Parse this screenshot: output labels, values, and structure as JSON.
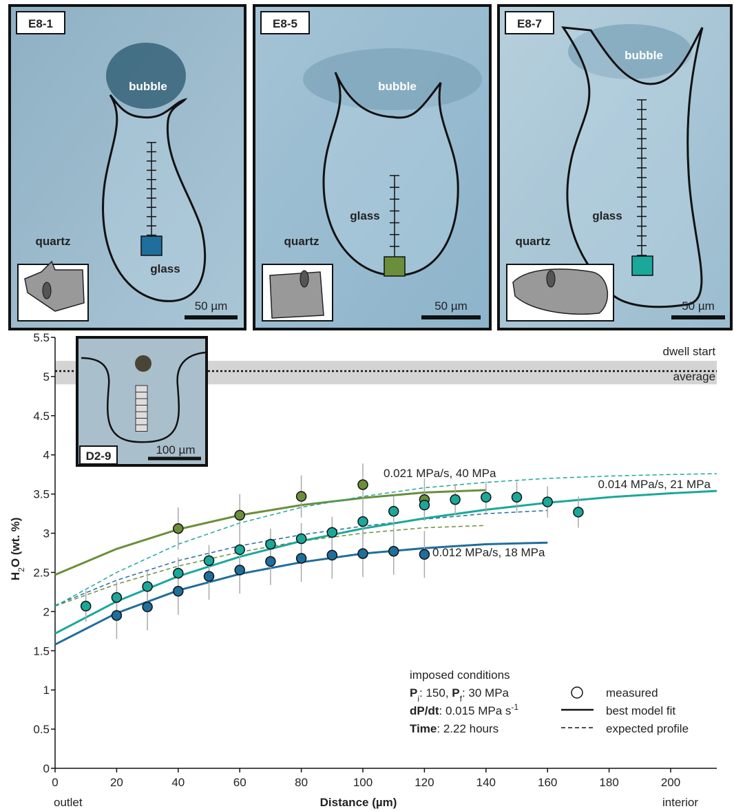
{
  "panels": [
    {
      "id": "E8-1",
      "bubble": "bubble",
      "glass": "glass",
      "quartz": "quartz",
      "scale_bar": "50 µm"
    },
    {
      "id": "E8-5",
      "bubble": "bubble",
      "glass": "glass",
      "quartz": "quartz",
      "scale_bar": "50 µm"
    },
    {
      "id": "E8-7",
      "bubble": "bubble",
      "glass": "glass",
      "quartz": "quartz",
      "scale_bar": "50 µm"
    }
  ],
  "chart_data": {
    "type": "scatter",
    "inset": {
      "id": "D2-9",
      "scale_bar": "100 µm"
    },
    "xlabel": "Distance (µm)",
    "ylabel_parts": [
      {
        "text": "H",
        "style": "bold"
      },
      {
        "text": "2",
        "style": "sub"
      },
      {
        "text": "O (wt. %)",
        "style": "bold"
      }
    ],
    "x_end_labels": [
      "outlet",
      "interior"
    ],
    "xlim": [
      0,
      215
    ],
    "xticks": [
      0,
      20,
      40,
      60,
      80,
      100,
      120,
      140,
      160,
      180,
      200
    ],
    "ylim": [
      0,
      5.5
    ],
    "yticks": [
      0,
      0.5,
      1,
      1.5,
      2,
      2.5,
      3,
      3.5,
      4,
      4.5,
      5,
      5.5
    ],
    "dwell_start": {
      "label": "dwell start",
      "average_label": "average",
      "band": [
        4.9,
        5.2
      ],
      "average": 5.07
    },
    "series": [
      {
        "color": "#1f6e9c",
        "x": [
          20,
          30,
          40,
          50,
          60,
          70,
          80,
          90,
          100,
          110,
          120
        ],
        "values": [
          1.95,
          2.06,
          2.26,
          2.45,
          2.53,
          2.64,
          2.68,
          2.72,
          2.74,
          2.77,
          2.73
        ],
        "errors": [
          0.3,
          0.3,
          0.3,
          0.3,
          0.3,
          0.3,
          0.3,
          0.3,
          0.3,
          0.3,
          0.3
        ],
        "fit": {
          "x": [
            0,
            20,
            40,
            60,
            80,
            100,
            120,
            140,
            160
          ],
          "values": [
            1.58,
            1.98,
            2.27,
            2.48,
            2.63,
            2.74,
            2.81,
            2.86,
            2.88
          ]
        },
        "expected": {
          "x": [
            0,
            20,
            40,
            60,
            80,
            100,
            120,
            140,
            160
          ],
          "values": [
            2.08,
            2.4,
            2.65,
            2.84,
            2.98,
            3.09,
            3.18,
            3.25,
            3.29
          ]
        },
        "fit_label": "0.012 MPa/s, 18 MPa"
      },
      {
        "color": "#6b8e3a",
        "x": [
          40,
          60,
          80,
          100,
          120
        ],
        "values": [
          3.06,
          3.23,
          3.47,
          3.62,
          3.43
        ],
        "errors": [
          0.27,
          0.27,
          0.27,
          0.27,
          0.27
        ],
        "fit": {
          "x": [
            0,
            20,
            40,
            60,
            80,
            100,
            120,
            140
          ],
          "values": [
            2.47,
            2.8,
            3.05,
            3.23,
            3.36,
            3.45,
            3.52,
            3.55
          ]
        },
        "expected": {
          "x": [
            0,
            20,
            40,
            60,
            80,
            100,
            120,
            140
          ],
          "values": [
            2.07,
            2.35,
            2.58,
            2.76,
            2.9,
            3.0,
            3.07,
            3.1
          ]
        },
        "fit_label": "0.021 MPa/s, 40 MPa"
      },
      {
        "color": "#1aa89a",
        "x": [
          10,
          20,
          30,
          40,
          50,
          60,
          70,
          80,
          90,
          100,
          110,
          120,
          130,
          140,
          150,
          160,
          170
        ],
        "values": [
          2.07,
          2.18,
          2.32,
          2.49,
          2.65,
          2.79,
          2.86,
          2.93,
          3.01,
          3.15,
          3.28,
          3.36,
          3.43,
          3.46,
          3.46,
          3.4,
          3.27
        ],
        "errors": [
          0.2,
          0.2,
          0.2,
          0.2,
          0.2,
          0.2,
          0.2,
          0.2,
          0.2,
          0.2,
          0.2,
          0.2,
          0.2,
          0.2,
          0.2,
          0.2,
          0.2
        ],
        "fit": {
          "x": [
            0,
            20,
            40,
            60,
            80,
            100,
            120,
            140,
            160,
            180,
            200,
            215
          ],
          "values": [
            1.72,
            2.13,
            2.45,
            2.7,
            2.9,
            3.06,
            3.19,
            3.3,
            3.39,
            3.46,
            3.51,
            3.54
          ]
        },
        "expected": {
          "x": [
            0,
            20,
            40,
            60,
            80,
            100,
            120,
            140,
            160,
            180,
            200,
            215
          ],
          "values": [
            2.07,
            2.5,
            2.86,
            3.13,
            3.33,
            3.47,
            3.58,
            3.65,
            3.7,
            3.73,
            3.75,
            3.76
          ]
        },
        "fit_label": "0.014 MPa/s, 21 MPa"
      }
    ],
    "legend": {
      "title": "imposed conditions",
      "conditions": [
        [
          {
            "text": "P",
            "style": "bold"
          },
          {
            "text": "i",
            "style": "sub"
          },
          {
            "text": ": 150, ",
            "style": "normal"
          },
          {
            "text": "P",
            "style": "bold"
          },
          {
            "text": "f",
            "style": "sub"
          },
          {
            "text": ": 30 MPa",
            "style": "normal"
          }
        ],
        [
          {
            "text": "dP/dt",
            "style": "bold"
          },
          {
            "text": ": 0.015 MPa s",
            "style": "normal"
          },
          {
            "text": "-1",
            "style": "sup"
          }
        ],
        [
          {
            "text": "Time",
            "style": "bold"
          },
          {
            "text": ": 2.22 hours",
            "style": "normal"
          }
        ]
      ],
      "entries": [
        "measured",
        "best model fit",
        "expected profile"
      ]
    }
  }
}
